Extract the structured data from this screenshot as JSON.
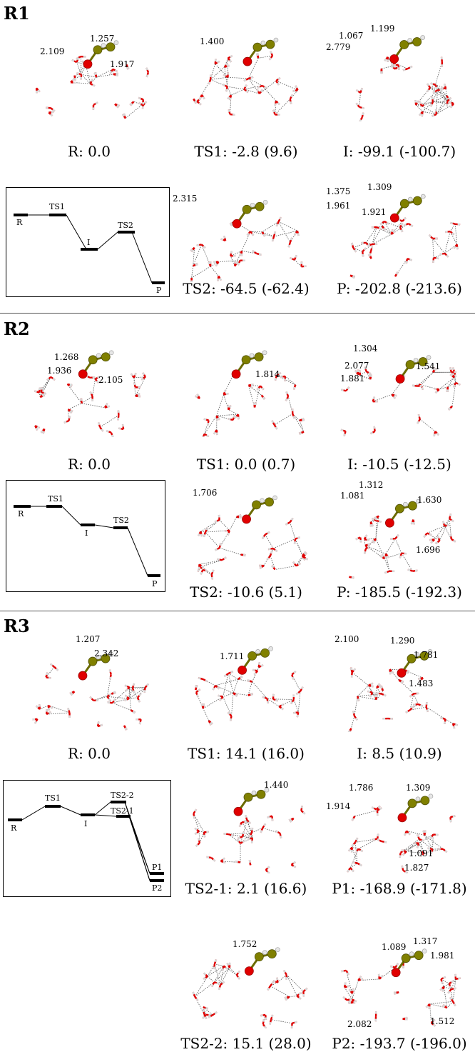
{
  "sections": [
    {
      "title": "R1",
      "structures": [
        {
          "label": "R: 0.0",
          "distances": [
            "2.109",
            "1.257",
            "1.917"
          ]
        },
        {
          "label": "TS1: -2.8 (9.6)",
          "distances": [
            "1.400"
          ]
        },
        {
          "label": "I: -99.1 (-100.7)",
          "distances": [
            "1.067",
            "1.199",
            "2.779"
          ]
        },
        {
          "label": "TS2: -64.5 (-62.4)",
          "distances": [
            "2.315"
          ]
        },
        {
          "label": "P: -202.8 (-213.6)",
          "distances": [
            "1.375",
            "1.309",
            "1.961",
            "1.921"
          ]
        }
      ],
      "energy_diagram": {
        "levels": [
          "R",
          "TS1",
          "I",
          "TS2",
          "P"
        ]
      }
    },
    {
      "title": "R2",
      "structures": [
        {
          "label": "R: 0.0",
          "distances": [
            "1.268",
            "1.936",
            "2.105"
          ]
        },
        {
          "label": "TS1: 0.0 (0.7)",
          "distances": [
            "1.814"
          ]
        },
        {
          "label": "I: -10.5 (-12.5)",
          "distances": [
            "1.304",
            "2.077",
            "1.881",
            "1.541"
          ]
        },
        {
          "label": "TS2: -10.6 (5.1)",
          "distances": [
            "1.706"
          ]
        },
        {
          "label": "P: -185.5 (-192.3)",
          "distances": [
            "1.312",
            "1.081",
            "1.630",
            "1.696"
          ]
        }
      ],
      "energy_diagram": {
        "levels": [
          "R",
          "TS1",
          "I",
          "TS2",
          "P"
        ]
      }
    },
    {
      "title": "R3",
      "structures": [
        {
          "label": "R: 0.0",
          "distances": [
            "1.207",
            "2.342"
          ]
        },
        {
          "label": "TS1: 14.1 (16.0)",
          "distances": [
            "1.711"
          ]
        },
        {
          "label": "I: 8.5 (10.9)",
          "distances": [
            "2.100",
            "1.290",
            "1.781",
            "1.483"
          ]
        },
        {
          "label": "TS2-1: 2.1 (16.6)",
          "distances": [
            "1.440"
          ]
        },
        {
          "label": "P1: -168.9 (-171.8)",
          "distances": [
            "1.786",
            "1.309",
            "1.914",
            "1.091",
            "1.827"
          ]
        },
        {
          "label": "TS2-2: 15.1 (28.0)",
          "distances": [
            "1.752"
          ]
        },
        {
          "label": "P2: -193.7 (-196.0)",
          "distances": [
            "1.089",
            "1.317",
            "1.981",
            "2.082",
            "1.512"
          ]
        }
      ],
      "energy_diagram": {
        "levels": [
          "R",
          "TS1",
          "I",
          "TS2-2",
          "TS2-1",
          "P1",
          "P2"
        ]
      }
    }
  ],
  "colors": {
    "oxygen": "#e00000",
    "carbon": "#808000",
    "hydrogen": "#d8d8d8",
    "bond": "#444444"
  }
}
